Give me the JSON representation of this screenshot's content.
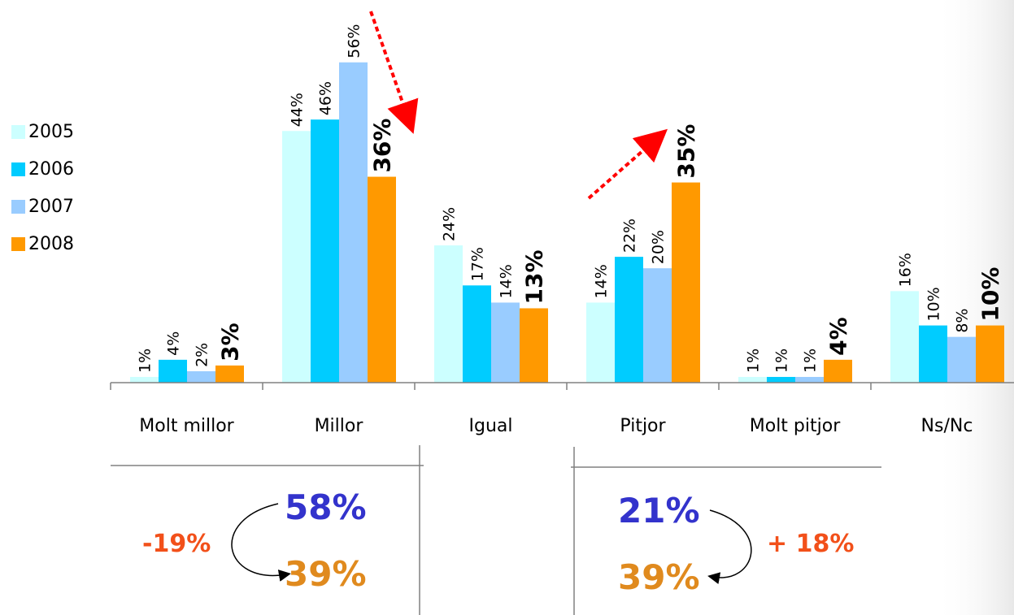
{
  "chart_data": {
    "type": "bar",
    "categories": [
      "Molt millor",
      "Millor",
      "Igual",
      "Pitjor",
      "Molt pitjor",
      "Ns/Nc"
    ],
    "series": [
      {
        "name": "2005",
        "values": [
          1,
          44,
          24,
          14,
          1,
          16
        ],
        "labels": [
          "1%",
          "44%",
          "24%",
          "14%",
          "1%",
          "16%"
        ],
        "color": "#ccffff"
      },
      {
        "name": "2006",
        "values": [
          4,
          46,
          17,
          22,
          1,
          10
        ],
        "labels": [
          "4%",
          "46%",
          "17%",
          "22%",
          "1%",
          "10%"
        ],
        "color": "#00ccff"
      },
      {
        "name": "2007",
        "values": [
          2,
          56,
          14,
          20,
          1,
          8
        ],
        "labels": [
          "2%",
          "56%",
          "14%",
          "20%",
          "1%",
          "8%"
        ],
        "color": "#99ccff"
      },
      {
        "name": "2008",
        "values": [
          3,
          36,
          13,
          35,
          4,
          10
        ],
        "labels": [
          "3%",
          "36%",
          "13%",
          "35%",
          "4%",
          "10%"
        ],
        "color": "#ff9900",
        "bold_labels": true
      }
    ],
    "legend_position": "left",
    "grid": false
  },
  "summary": {
    "positive": {
      "value_2007": "58%",
      "value_2008": "39%",
      "change": "-19%"
    },
    "negative": {
      "value_2007": "21%",
      "value_2008": "39%",
      "change": "+ 18%"
    }
  },
  "colors": {
    "value_2007": "#3333cc",
    "value_2008": "#e08a1e",
    "change": "#f2501a",
    "trend_arrow": "#ff0000",
    "axis": "#808080",
    "separator": "#808080"
  },
  "icons": [
    "trend-down-arrow-icon",
    "trend-up-arrow-icon",
    "curved-arrow-icon"
  ]
}
